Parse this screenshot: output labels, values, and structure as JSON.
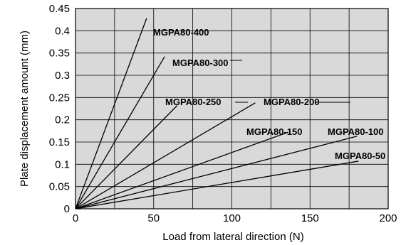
{
  "chart_data": {
    "type": "line",
    "title": "",
    "xlabel": "Load from lateral direction (N)",
    "ylabel": "Plate displacement amount (mm)",
    "xlim": [
      0,
      200
    ],
    "ylim": [
      0,
      0.45
    ],
    "x_ticks": [
      "0",
      "50",
      "100",
      "150",
      "200"
    ],
    "x_tick_values": [
      0,
      50,
      100,
      150,
      200
    ],
    "y_ticks": [
      "0",
      "0.05",
      "0.1",
      "0.15",
      "0.2",
      "0.25",
      "0.3",
      "0.35",
      "0.4",
      "0.45"
    ],
    "y_tick_values": [
      0,
      0.05,
      0.1,
      0.15,
      0.2,
      0.25,
      0.3,
      0.35,
      0.4,
      0.45
    ],
    "grid": true,
    "series": [
      {
        "name": "MGPA80-400",
        "x": [
          0,
          45.5
        ],
        "y": [
          0,
          0.428
        ]
      },
      {
        "name": "MGPA80-300",
        "x": [
          0,
          57
        ],
        "y": [
          0,
          0.342
        ]
      },
      {
        "name": "MGPA80-250",
        "x": [
          0,
          65
        ],
        "y": [
          0,
          0.232
        ]
      },
      {
        "name": "MGPA80-200",
        "x": [
          0,
          115
        ],
        "y": [
          0,
          0.238
        ]
      },
      {
        "name": "MGPA80-150",
        "x": [
          0,
          136
        ],
        "y": [
          0,
          0.172
        ]
      },
      {
        "name": "MGPA80-100",
        "x": [
          0,
          180
        ],
        "y": [
          0,
          0.163
        ]
      },
      {
        "name": "MGPA80-50",
        "x": [
          0,
          181
        ],
        "y": [
          0,
          0.107
        ]
      }
    ]
  }
}
